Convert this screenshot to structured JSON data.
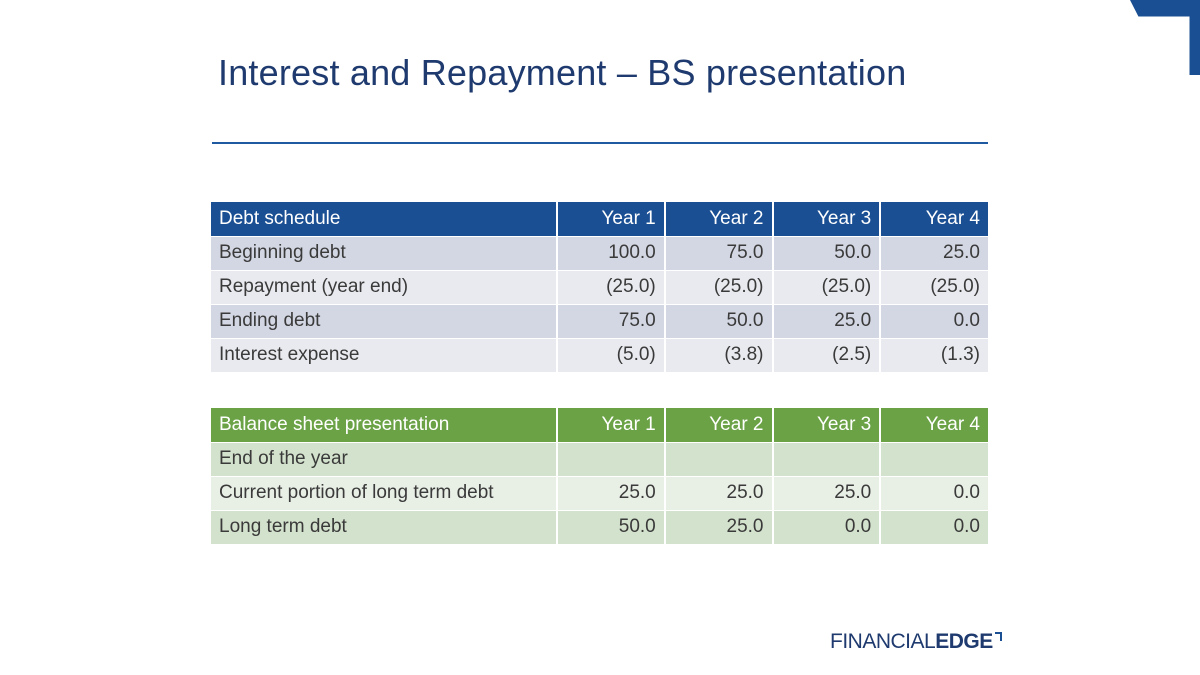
{
  "slide": {
    "title": "Interest and Repayment – BS presentation"
  },
  "debt_schedule": {
    "header": [
      "Debt schedule",
      "Year 1",
      "Year 2",
      "Year 3",
      "Year 4"
    ],
    "rows": [
      [
        "Beginning debt",
        "100.0",
        "75.0",
        "50.0",
        "25.0"
      ],
      [
        "Repayment (year end)",
        "(25.0)",
        "(25.0)",
        "(25.0)",
        "(25.0)"
      ],
      [
        "Ending debt",
        "75.0",
        "50.0",
        "25.0",
        "0.0"
      ],
      [
        "Interest expense",
        "(5.0)",
        "(3.8)",
        "(2.5)",
        "(1.3)"
      ]
    ],
    "header_color": "#1b4f93"
  },
  "balance_sheet": {
    "header": [
      "Balance sheet presentation",
      "Year 1",
      "Year 2",
      "Year 3",
      "Year 4"
    ],
    "rows": [
      [
        "End of the year",
        "",
        "",
        "",
        ""
      ],
      [
        "Current portion of long term debt",
        "25.0",
        "25.0",
        "25.0",
        "0.0"
      ],
      [
        "Long term debt",
        "50.0",
        "25.0",
        "0.0",
        "0.0"
      ]
    ],
    "header_color": "#6aa245"
  },
  "logo": {
    "part1": "FINANCIAL",
    "part2": "EDGE",
    "icon": "corner-bracket-icon"
  },
  "decor": {
    "corner_icon": "corner-accent-shape",
    "accent_color": "#1b4f93"
  }
}
